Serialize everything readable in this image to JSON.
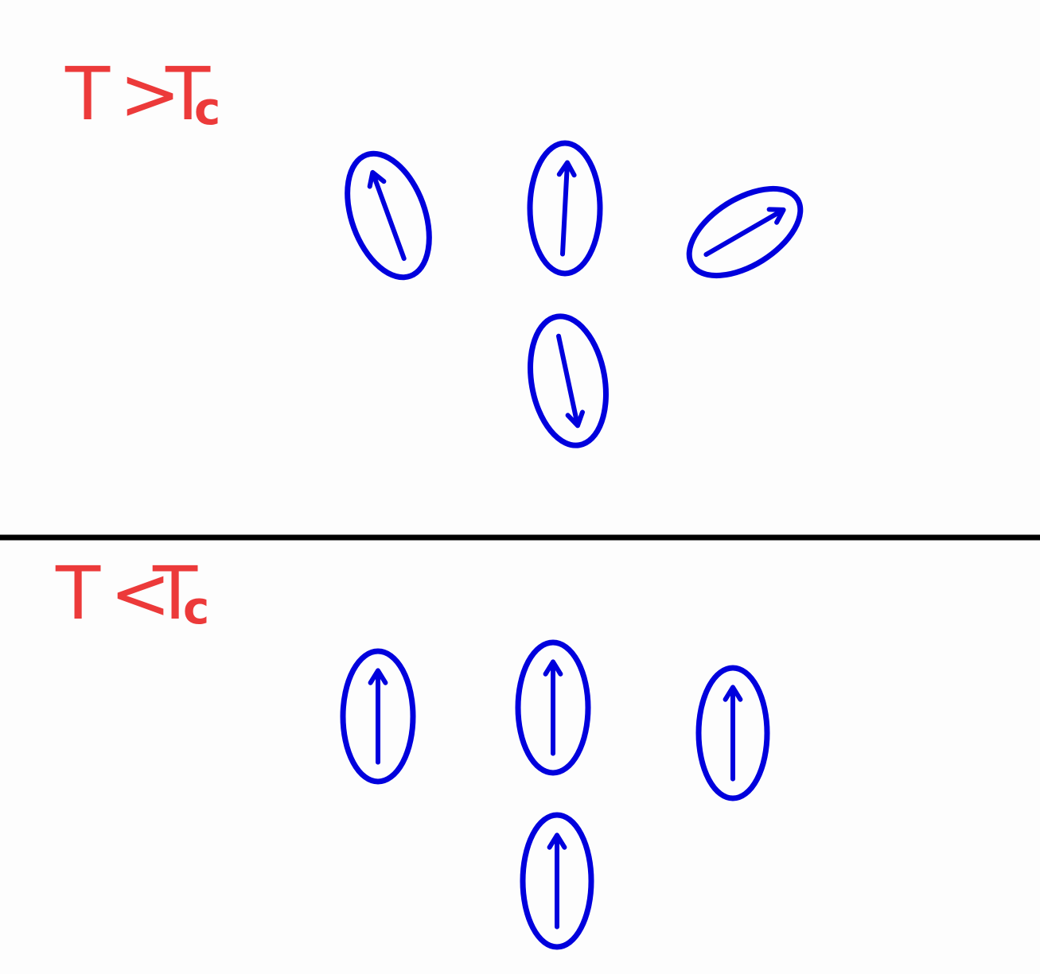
{
  "colors": {
    "label": "#ec3a3a",
    "spin": "#0000dd",
    "divider": "#000000",
    "background": "#fdfdfd"
  },
  "panels": [
    {
      "name": "high-temperature",
      "label": {
        "main": "T",
        "relation": ">",
        "ref": "T",
        "sub": "c"
      },
      "spins": [
        {
          "name": "spin-1",
          "direction_deg": -20
        },
        {
          "name": "spin-2",
          "direction_deg": 3
        },
        {
          "name": "spin-3",
          "direction_deg": 60
        },
        {
          "name": "spin-4",
          "direction_deg": 168
        }
      ]
    },
    {
      "name": "low-temperature",
      "label": {
        "main": "T",
        "relation": "<",
        "ref": "T",
        "sub": "c"
      },
      "spins": [
        {
          "name": "spin-1",
          "direction_deg": 0
        },
        {
          "name": "spin-2",
          "direction_deg": 0
        },
        {
          "name": "spin-3",
          "direction_deg": 0
        },
        {
          "name": "spin-4",
          "direction_deg": 0
        }
      ]
    }
  ]
}
